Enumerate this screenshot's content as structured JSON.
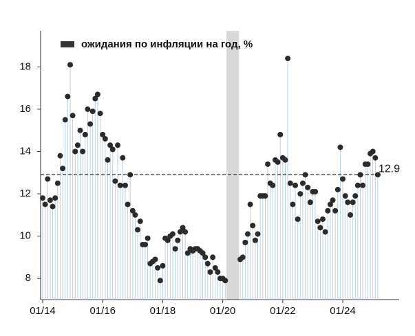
{
  "chart_data": {
    "type": "stem",
    "legend": "ожидания по инфляции на год, %",
    "legend_position": "upper left",
    "x": [
      "01/14",
      "02/14",
      "03/14",
      "04/14",
      "05/14",
      "06/14",
      "07/14",
      "08/14",
      "09/14",
      "10/14",
      "11/14",
      "12/14",
      "01/15",
      "02/15",
      "03/15",
      "04/15",
      "05/15",
      "06/15",
      "07/15",
      "08/15",
      "09/15",
      "10/15",
      "11/15",
      "12/15",
      "01/16",
      "02/16",
      "03/16",
      "04/16",
      "05/16",
      "06/16",
      "07/16",
      "08/16",
      "09/16",
      "10/16",
      "11/16",
      "12/16",
      "01/17",
      "02/17",
      "03/17",
      "04/17",
      "05/17",
      "06/17",
      "07/17",
      "08/17",
      "09/17",
      "10/17",
      "11/17",
      "12/17",
      "01/18",
      "02/18",
      "03/18",
      "04/18",
      "05/18",
      "06/18",
      "07/18",
      "08/18",
      "09/18",
      "10/18",
      "11/18",
      "12/18",
      "01/19",
      "02/19",
      "03/19",
      "04/19",
      "05/19",
      "06/19",
      "07/19",
      "08/19",
      "09/19",
      "10/19",
      "11/19",
      "12/19",
      "01/20",
      "02/20",
      "03/20",
      "04/20",
      "05/20",
      "06/20",
      "07/20",
      "08/20",
      "09/20",
      "10/20",
      "11/20",
      "12/20",
      "01/21",
      "02/21",
      "03/21",
      "04/21",
      "05/21",
      "06/21",
      "07/21",
      "08/21",
      "09/21",
      "10/21",
      "11/21",
      "12/21",
      "01/22",
      "02/22",
      "03/22",
      "04/22",
      "05/22",
      "06/22",
      "07/22",
      "08/22",
      "09/22",
      "10/22",
      "11/22",
      "12/22",
      "01/23",
      "02/23",
      "03/23",
      "04/23",
      "05/23",
      "06/23",
      "07/23",
      "08/23",
      "09/23",
      "10/23",
      "11/23",
      "12/23",
      "01/24",
      "02/24",
      "03/24",
      "04/24",
      "05/24",
      "06/24",
      "07/24",
      "08/24",
      "09/24",
      "10/24",
      "11/24",
      "12/24",
      "01/25",
      "02/25",
      "03/25"
    ],
    "values": [
      11.8,
      11.5,
      12.7,
      11.7,
      11.4,
      11.8,
      12.5,
      13.8,
      13.2,
      15.5,
      16.6,
      18.1,
      15.7,
      14.0,
      14.3,
      15.0,
      14.0,
      14.8,
      16.0,
      15.3,
      15.9,
      16.5,
      16.7,
      15.8,
      14.8,
      14.6,
      13.6,
      14.3,
      14.1,
      12.6,
      14.3,
      12.4,
      13.7,
      12.4,
      11.5,
      12.9,
      11.2,
      11.0,
      10.3,
      10.7,
      9.6,
      9.6,
      9.9,
      8.7,
      8.8,
      8.9,
      8.5,
      7.9,
      8.6,
      9.9,
      9.8,
      10.0,
      10.1,
      9.4,
      9.8,
      10.2,
      10.4,
      10.2,
      9.2,
      9.4,
      9.3,
      9.4,
      9.4,
      9.3,
      9.2,
      9.0,
      8.7,
      8.3,
      9.0,
      8.5,
      8.3,
      8.0,
      8.0,
      7.9,
      null,
      null,
      null,
      null,
      null,
      8.9,
      9.0,
      9.7,
      10.1,
      11.5,
      10.5,
      9.8,
      10.1,
      11.9,
      11.9,
      11.9,
      13.4,
      12.5,
      12.4,
      13.6,
      13.5,
      14.8,
      13.7,
      13.6,
      18.4,
      12.5,
      11.5,
      12.4,
      10.8,
      12.0,
      12.5,
      12.9,
      12.3,
      11.6,
      12.1,
      12.1,
      10.7,
      10.4,
      10.8,
      10.2,
      11.2,
      11.5,
      11.7,
      11.2,
      12.2,
      14.2,
      12.7,
      11.9,
      11.6,
      11.0,
      11.6,
      11.9,
      12.4,
      12.9,
      12.4,
      13.4,
      13.4,
      13.9,
      14.0,
      13.7,
      12.9
    ],
    "color": "#2b2b2b",
    "stem_color": "#bcd0e2",
    "shaded_range": [
      "03/20",
      "07/20"
    ],
    "reference_line": 12.9,
    "ylim": [
      7,
      19.7
    ],
    "yticks": [
      8,
      10,
      12,
      14,
      16,
      18
    ],
    "xticks": [
      "01/14",
      "01/16",
      "01/18",
      "01/20",
      "01/22",
      "01/24"
    ]
  }
}
